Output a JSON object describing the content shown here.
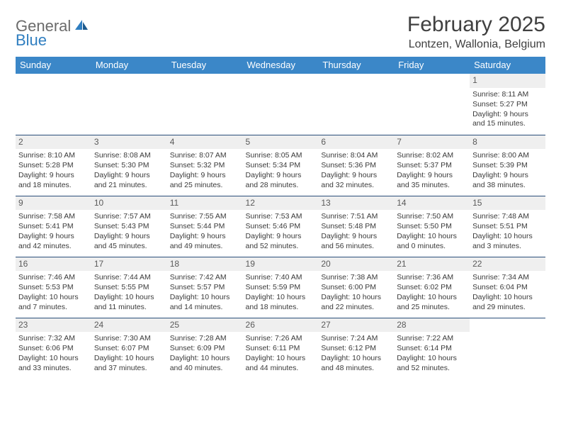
{
  "logo": {
    "text1": "General",
    "text2": "Blue"
  },
  "title": "February 2025",
  "location": "Lontzen, Wallonia, Belgium",
  "colors": {
    "header_bg": "#3b87c8",
    "header_text": "#ffffff",
    "day_header_bg": "#efefef",
    "border": "#2a4e7a",
    "logo_blue": "#2f7ec0",
    "logo_gray": "#6b6b6b"
  },
  "weekdays": [
    "Sunday",
    "Monday",
    "Tuesday",
    "Wednesday",
    "Thursday",
    "Friday",
    "Saturday"
  ],
  "weeks": [
    [
      {
        "empty": true
      },
      {
        "empty": true
      },
      {
        "empty": true
      },
      {
        "empty": true
      },
      {
        "empty": true
      },
      {
        "empty": true
      },
      {
        "day": "1",
        "sunrise": "Sunrise: 8:11 AM",
        "sunset": "Sunset: 5:27 PM",
        "daylight": "Daylight: 9 hours and 15 minutes."
      }
    ],
    [
      {
        "day": "2",
        "sunrise": "Sunrise: 8:10 AM",
        "sunset": "Sunset: 5:28 PM",
        "daylight": "Daylight: 9 hours and 18 minutes."
      },
      {
        "day": "3",
        "sunrise": "Sunrise: 8:08 AM",
        "sunset": "Sunset: 5:30 PM",
        "daylight": "Daylight: 9 hours and 21 minutes."
      },
      {
        "day": "4",
        "sunrise": "Sunrise: 8:07 AM",
        "sunset": "Sunset: 5:32 PM",
        "daylight": "Daylight: 9 hours and 25 minutes."
      },
      {
        "day": "5",
        "sunrise": "Sunrise: 8:05 AM",
        "sunset": "Sunset: 5:34 PM",
        "daylight": "Daylight: 9 hours and 28 minutes."
      },
      {
        "day": "6",
        "sunrise": "Sunrise: 8:04 AM",
        "sunset": "Sunset: 5:36 PM",
        "daylight": "Daylight: 9 hours and 32 minutes."
      },
      {
        "day": "7",
        "sunrise": "Sunrise: 8:02 AM",
        "sunset": "Sunset: 5:37 PM",
        "daylight": "Daylight: 9 hours and 35 minutes."
      },
      {
        "day": "8",
        "sunrise": "Sunrise: 8:00 AM",
        "sunset": "Sunset: 5:39 PM",
        "daylight": "Daylight: 9 hours and 38 minutes."
      }
    ],
    [
      {
        "day": "9",
        "sunrise": "Sunrise: 7:58 AM",
        "sunset": "Sunset: 5:41 PM",
        "daylight": "Daylight: 9 hours and 42 minutes."
      },
      {
        "day": "10",
        "sunrise": "Sunrise: 7:57 AM",
        "sunset": "Sunset: 5:43 PM",
        "daylight": "Daylight: 9 hours and 45 minutes."
      },
      {
        "day": "11",
        "sunrise": "Sunrise: 7:55 AM",
        "sunset": "Sunset: 5:44 PM",
        "daylight": "Daylight: 9 hours and 49 minutes."
      },
      {
        "day": "12",
        "sunrise": "Sunrise: 7:53 AM",
        "sunset": "Sunset: 5:46 PM",
        "daylight": "Daylight: 9 hours and 52 minutes."
      },
      {
        "day": "13",
        "sunrise": "Sunrise: 7:51 AM",
        "sunset": "Sunset: 5:48 PM",
        "daylight": "Daylight: 9 hours and 56 minutes."
      },
      {
        "day": "14",
        "sunrise": "Sunrise: 7:50 AM",
        "sunset": "Sunset: 5:50 PM",
        "daylight": "Daylight: 10 hours and 0 minutes."
      },
      {
        "day": "15",
        "sunrise": "Sunrise: 7:48 AM",
        "sunset": "Sunset: 5:51 PM",
        "daylight": "Daylight: 10 hours and 3 minutes."
      }
    ],
    [
      {
        "day": "16",
        "sunrise": "Sunrise: 7:46 AM",
        "sunset": "Sunset: 5:53 PM",
        "daylight": "Daylight: 10 hours and 7 minutes."
      },
      {
        "day": "17",
        "sunrise": "Sunrise: 7:44 AM",
        "sunset": "Sunset: 5:55 PM",
        "daylight": "Daylight: 10 hours and 11 minutes."
      },
      {
        "day": "18",
        "sunrise": "Sunrise: 7:42 AM",
        "sunset": "Sunset: 5:57 PM",
        "daylight": "Daylight: 10 hours and 14 minutes."
      },
      {
        "day": "19",
        "sunrise": "Sunrise: 7:40 AM",
        "sunset": "Sunset: 5:59 PM",
        "daylight": "Daylight: 10 hours and 18 minutes."
      },
      {
        "day": "20",
        "sunrise": "Sunrise: 7:38 AM",
        "sunset": "Sunset: 6:00 PM",
        "daylight": "Daylight: 10 hours and 22 minutes."
      },
      {
        "day": "21",
        "sunrise": "Sunrise: 7:36 AM",
        "sunset": "Sunset: 6:02 PM",
        "daylight": "Daylight: 10 hours and 25 minutes."
      },
      {
        "day": "22",
        "sunrise": "Sunrise: 7:34 AM",
        "sunset": "Sunset: 6:04 PM",
        "daylight": "Daylight: 10 hours and 29 minutes."
      }
    ],
    [
      {
        "day": "23",
        "sunrise": "Sunrise: 7:32 AM",
        "sunset": "Sunset: 6:06 PM",
        "daylight": "Daylight: 10 hours and 33 minutes."
      },
      {
        "day": "24",
        "sunrise": "Sunrise: 7:30 AM",
        "sunset": "Sunset: 6:07 PM",
        "daylight": "Daylight: 10 hours and 37 minutes."
      },
      {
        "day": "25",
        "sunrise": "Sunrise: 7:28 AM",
        "sunset": "Sunset: 6:09 PM",
        "daylight": "Daylight: 10 hours and 40 minutes."
      },
      {
        "day": "26",
        "sunrise": "Sunrise: 7:26 AM",
        "sunset": "Sunset: 6:11 PM",
        "daylight": "Daylight: 10 hours and 44 minutes."
      },
      {
        "day": "27",
        "sunrise": "Sunrise: 7:24 AM",
        "sunset": "Sunset: 6:12 PM",
        "daylight": "Daylight: 10 hours and 48 minutes."
      },
      {
        "day": "28",
        "sunrise": "Sunrise: 7:22 AM",
        "sunset": "Sunset: 6:14 PM",
        "daylight": "Daylight: 10 hours and 52 minutes."
      },
      {
        "empty": true
      }
    ]
  ]
}
